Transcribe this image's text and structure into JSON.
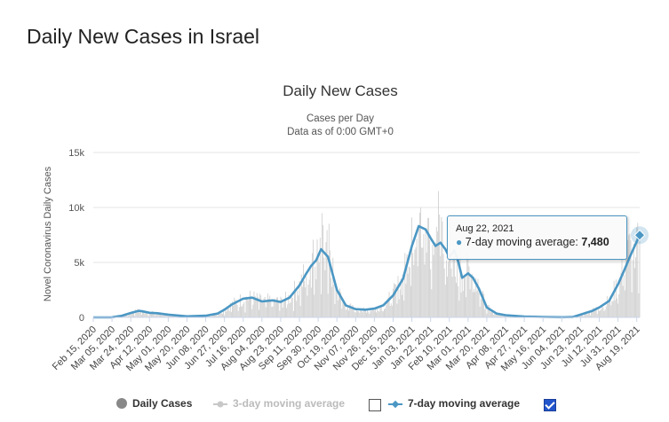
{
  "page_title": "Daily New Cases in Israel",
  "chart_data": {
    "type": "bar",
    "title": "Daily New Cases",
    "subtitle_line1": "Cases per Day",
    "subtitle_line2": "Data as of 0:00 GMT+0",
    "ylabel": "Novel Coronavirus Daily Cases",
    "ylim": [
      0,
      15000
    ],
    "yticks": [
      0,
      5000,
      10000,
      15000
    ],
    "ytick_labels": [
      "0",
      "5k",
      "10k",
      "15k"
    ],
    "x_range": [
      "2020-02-15",
      "2021-08-22"
    ],
    "xtick_labels": [
      "Feb 15, 2020",
      "Mar 05, 2020",
      "Mar 24, 2020",
      "Apr 12, 2020",
      "May 01, 2020",
      "May 20, 2020",
      "Jun 08, 2020",
      "Jun 27, 2020",
      "Jul 16, 2020",
      "Aug 04, 2020",
      "Aug 23, 2020",
      "Sep 11, 2020",
      "Sep 30, 2020",
      "Oct 19, 2020",
      "Nov 07, 2020",
      "Nov 26, 2020",
      "Dec 15, 2020",
      "Jan 03, 2021",
      "Jan 22, 2021",
      "Feb 10, 2021",
      "Mar 01, 2021",
      "Mar 20, 2021",
      "Apr 08, 2021",
      "Apr 27, 2021",
      "May 16, 2021",
      "Jun 04, 2021",
      "Jun 23, 2021",
      "Jul 12, 2021",
      "Jul 31, 2021",
      "Aug 19, 2021"
    ],
    "series": [
      {
        "name": "7-day moving average",
        "color": "#4b97c4",
        "x": [
          "2020-02-15",
          "2020-03-05",
          "2020-03-15",
          "2020-03-24",
          "2020-04-01",
          "2020-04-05",
          "2020-04-12",
          "2020-04-20",
          "2020-05-01",
          "2020-05-20",
          "2020-06-08",
          "2020-06-20",
          "2020-06-27",
          "2020-07-05",
          "2020-07-16",
          "2020-07-25",
          "2020-08-04",
          "2020-08-15",
          "2020-08-23",
          "2020-09-01",
          "2020-09-11",
          "2020-09-18",
          "2020-09-23",
          "2020-09-28",
          "2020-10-03",
          "2020-10-10",
          "2020-10-19",
          "2020-10-28",
          "2020-11-07",
          "2020-11-17",
          "2020-11-26",
          "2020-12-05",
          "2020-12-15",
          "2020-12-25",
          "2021-01-03",
          "2021-01-10",
          "2021-01-17",
          "2021-01-22",
          "2021-01-27",
          "2021-02-01",
          "2021-02-06",
          "2021-02-10",
          "2021-02-15",
          "2021-02-19",
          "2021-02-23",
          "2021-03-01",
          "2021-03-06",
          "2021-03-12",
          "2021-03-20",
          "2021-03-30",
          "2021-04-08",
          "2021-04-27",
          "2021-05-16",
          "2021-06-04",
          "2021-06-15",
          "2021-06-23",
          "2021-07-05",
          "2021-07-12",
          "2021-07-22",
          "2021-07-31",
          "2021-08-06",
          "2021-08-12",
          "2021-08-19",
          "2021-08-22"
        ],
        "values": [
          0,
          10,
          150,
          400,
          600,
          550,
          420,
          380,
          250,
          100,
          150,
          350,
          700,
          1200,
          1700,
          1800,
          1450,
          1550,
          1400,
          1800,
          2900,
          4000,
          4700,
          5200,
          6200,
          5500,
          2500,
          1100,
          750,
          700,
          800,
          1100,
          2000,
          3500,
          6500,
          8300,
          8000,
          7200,
          6500,
          6800,
          6200,
          5500,
          6100,
          5100,
          3600,
          4000,
          3600,
          2600,
          900,
          350,
          200,
          80,
          40,
          20,
          30,
          250,
          600,
          900,
          1500,
          3000,
          4200,
          5500,
          6900,
          7480
        ]
      }
    ],
    "daily_cases_approx": {
      "note": "bars approximate the daily counts around the 7-day average",
      "x_start": "2020-02-15",
      "x_end": "2021-08-22"
    },
    "tooltip": {
      "date": "Aug 22, 2021",
      "series": "7-day moving average",
      "value": "7,480"
    },
    "legend": [
      {
        "label": "Daily Cases",
        "color": "#888888",
        "active": true
      },
      {
        "label": "3-day moving average",
        "color": "#c8c8c8",
        "active": false,
        "checked": false
      },
      {
        "label": "7-day moving average",
        "color": "#4b97c4",
        "active": true,
        "checked": true
      }
    ]
  }
}
